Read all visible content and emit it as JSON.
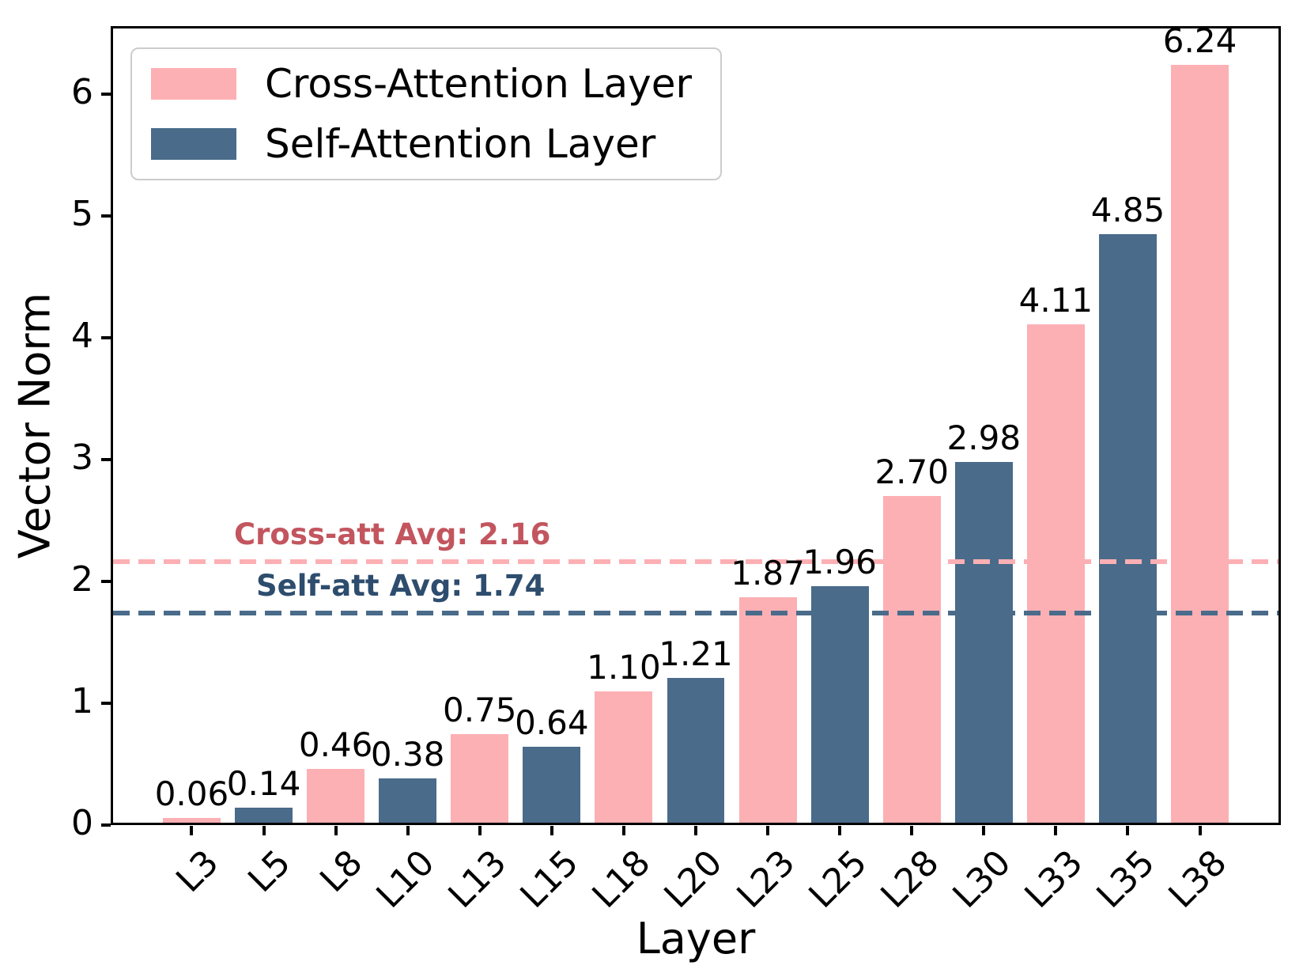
{
  "chart_data": {
    "type": "bar",
    "title": "",
    "xlabel": "Layer",
    "ylabel": "Vector Norm",
    "categories": [
      "L3",
      "L5",
      "L8",
      "L10",
      "L13",
      "L15",
      "L18",
      "L20",
      "L23",
      "L25",
      "L28",
      "L30",
      "L33",
      "L35",
      "L38"
    ],
    "values": [
      0.06,
      0.14,
      0.46,
      0.38,
      0.75,
      0.64,
      1.1,
      1.21,
      1.87,
      1.96,
      2.7,
      2.98,
      4.11,
      4.85,
      6.24
    ],
    "value_labels": [
      "0.06",
      "0.14",
      "0.46",
      "0.38",
      "0.75",
      "0.64",
      "1.10",
      "1.21",
      "1.87",
      "1.96",
      "2.70",
      "2.98",
      "4.11",
      "4.85",
      "6.24"
    ],
    "bar_series": [
      "cross",
      "self",
      "cross",
      "self",
      "cross",
      "self",
      "cross",
      "self",
      "cross",
      "self",
      "cross",
      "self",
      "cross",
      "self",
      "cross"
    ],
    "yticks": [
      0,
      1,
      2,
      3,
      4,
      5,
      6
    ],
    "ylim": [
      0,
      6.56
    ],
    "grid": false,
    "colors": {
      "cross": "#FCB0B4",
      "self": "#4A6B8A",
      "axis": "#000000"
    },
    "legend": {
      "position": "upper-left",
      "items": [
        {
          "id": "cross",
          "label": "Cross-Attention Layer",
          "color": "#FCB0B4"
        },
        {
          "id": "self",
          "label": "Self-Attention Layer",
          "color": "#4A6B8A"
        }
      ]
    },
    "avg_lines": [
      {
        "id": "cross",
        "label": "Cross-att Avg: 2.16",
        "value": 2.16,
        "line_color": "#FCB0B4",
        "text_color": "#C2555E"
      },
      {
        "id": "self",
        "label": "Self-att Avg: 1.74",
        "value": 1.74,
        "line_color": "#4A6B8A",
        "text_color": "#2E4D6E"
      }
    ]
  }
}
